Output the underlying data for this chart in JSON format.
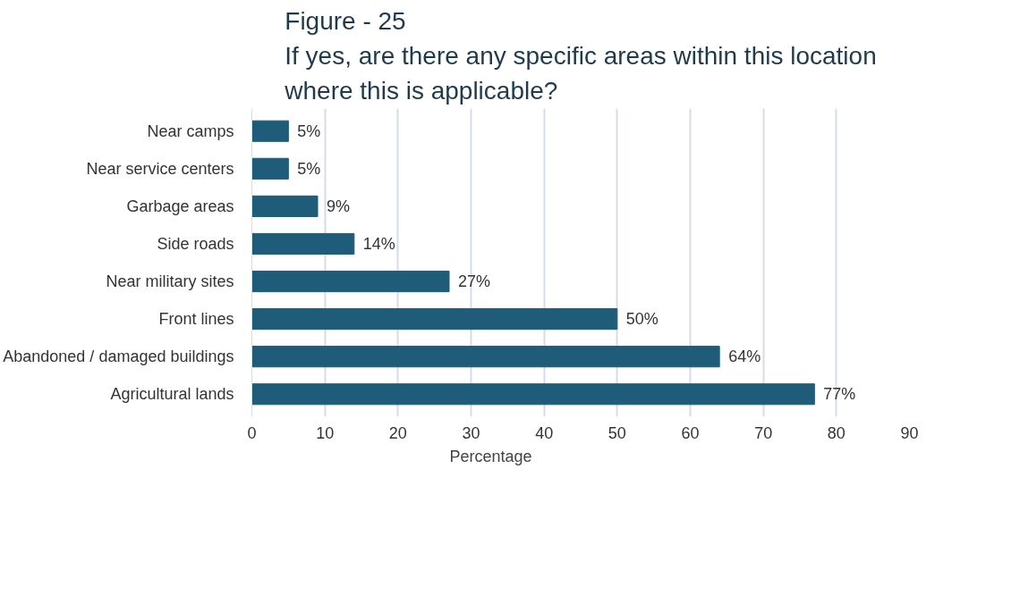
{
  "chart_data": {
    "type": "bar",
    "orientation": "horizontal",
    "title": "Figure - 25\nIf yes, are there any specific areas within this location\nwhere this is applicable?",
    "categories": [
      "Near camps",
      "Near service centers",
      "Garbage areas",
      "Side roads",
      "Near military sites",
      "Front lines",
      "Abandoned / damaged buildings",
      "Agricultural lands"
    ],
    "series": [
      {
        "name": "Percentage",
        "color": "#1f5c7a",
        "values": [
          5,
          5,
          9,
          14,
          27,
          50,
          64,
          77
        ],
        "value_labels": [
          "5%",
          "5%",
          "9%",
          "14%",
          "27%",
          "50%",
          "64%",
          "77%"
        ]
      }
    ],
    "xlim": [
      0,
      90
    ],
    "xticks": [
      0,
      10,
      20,
      30,
      40,
      50,
      60,
      70,
      80,
      90
    ],
    "grid": "x",
    "legend": "bottom"
  }
}
